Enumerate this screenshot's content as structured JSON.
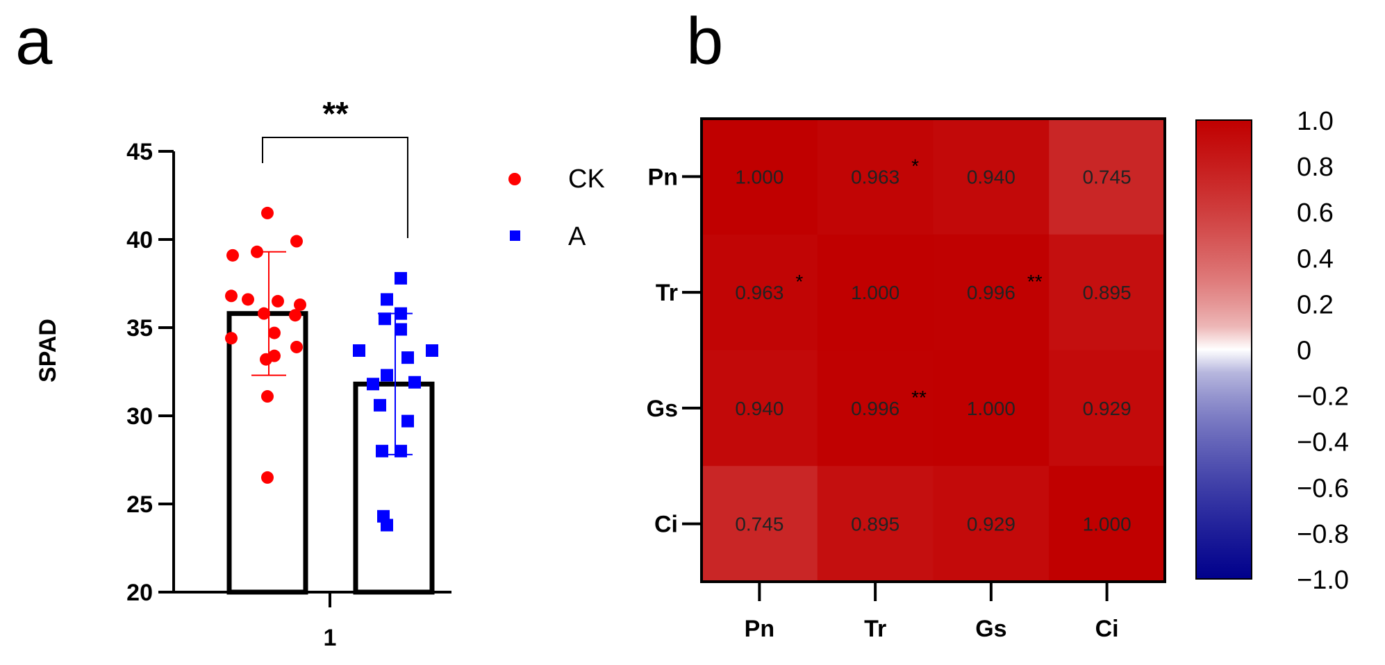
{
  "chart_data": [
    {
      "panel": "a",
      "type": "bar",
      "ylabel": "SPAD",
      "xlabel": "",
      "categories": [
        "1"
      ],
      "ylim": [
        20,
        45
      ],
      "yticks": [
        20,
        25,
        30,
        35,
        40,
        45
      ],
      "significance": "**",
      "series": [
        {
          "name": "CK",
          "color": "#ff0000",
          "marker": "circle",
          "mean": 35.8,
          "sd": 3.5,
          "points": [
            41.5,
            39.9,
            39.3,
            39.1,
            36.8,
            36.6,
            36.5,
            36.3,
            35.8,
            35.7,
            34.7,
            34.4,
            33.9,
            33.2,
            33.4,
            31.1,
            26.5
          ]
        },
        {
          "name": "A",
          "color": "#0000ff",
          "marker": "square",
          "mean": 31.8,
          "sd": 4.0,
          "points": [
            37.8,
            36.6,
            35.8,
            35.5,
            34.9,
            33.7,
            33.7,
            33.3,
            32.3,
            31.9,
            31.8,
            30.6,
            29.7,
            28.0,
            28.0,
            24.3,
            23.8
          ]
        }
      ]
    },
    {
      "panel": "b",
      "type": "heatmap",
      "rows": [
        "Pn",
        "Tr",
        "Gs",
        "Ci"
      ],
      "cols": [
        "Pn",
        "Tr",
        "Gs",
        "Ci"
      ],
      "values": [
        [
          1.0,
          0.963,
          0.94,
          0.745
        ],
        [
          0.963,
          1.0,
          0.996,
          0.895
        ],
        [
          0.94,
          0.996,
          1.0,
          0.929
        ],
        [
          0.745,
          0.895,
          0.929,
          1.0
        ]
      ],
      "labels": [
        [
          "1.000",
          "0.963",
          "0.940",
          "0.745"
        ],
        [
          "0.963",
          "1.000",
          "0.996",
          "0.895"
        ],
        [
          "0.940",
          "0.996",
          "1.000",
          "0.929"
        ],
        [
          "0.745",
          "0.895",
          "0.929",
          "1.000"
        ]
      ],
      "stars": [
        [
          "",
          "*",
          "",
          ""
        ],
        [
          "*",
          "",
          "**",
          ""
        ],
        [
          "",
          "**",
          "",
          ""
        ],
        [
          "",
          "",
          "",
          ""
        ]
      ],
      "colorbar": {
        "range": [
          -1.0,
          1.0
        ],
        "ticks": [
          "1.0",
          "0.8",
          "0.6",
          "0.4",
          "0.2",
          "0",
          "−0.2",
          "−0.4",
          "−0.6",
          "−0.8",
          "−1.0"
        ],
        "low_color": "#00008b",
        "mid_color": "#ffffff",
        "high_color": "#c00000"
      }
    }
  ]
}
